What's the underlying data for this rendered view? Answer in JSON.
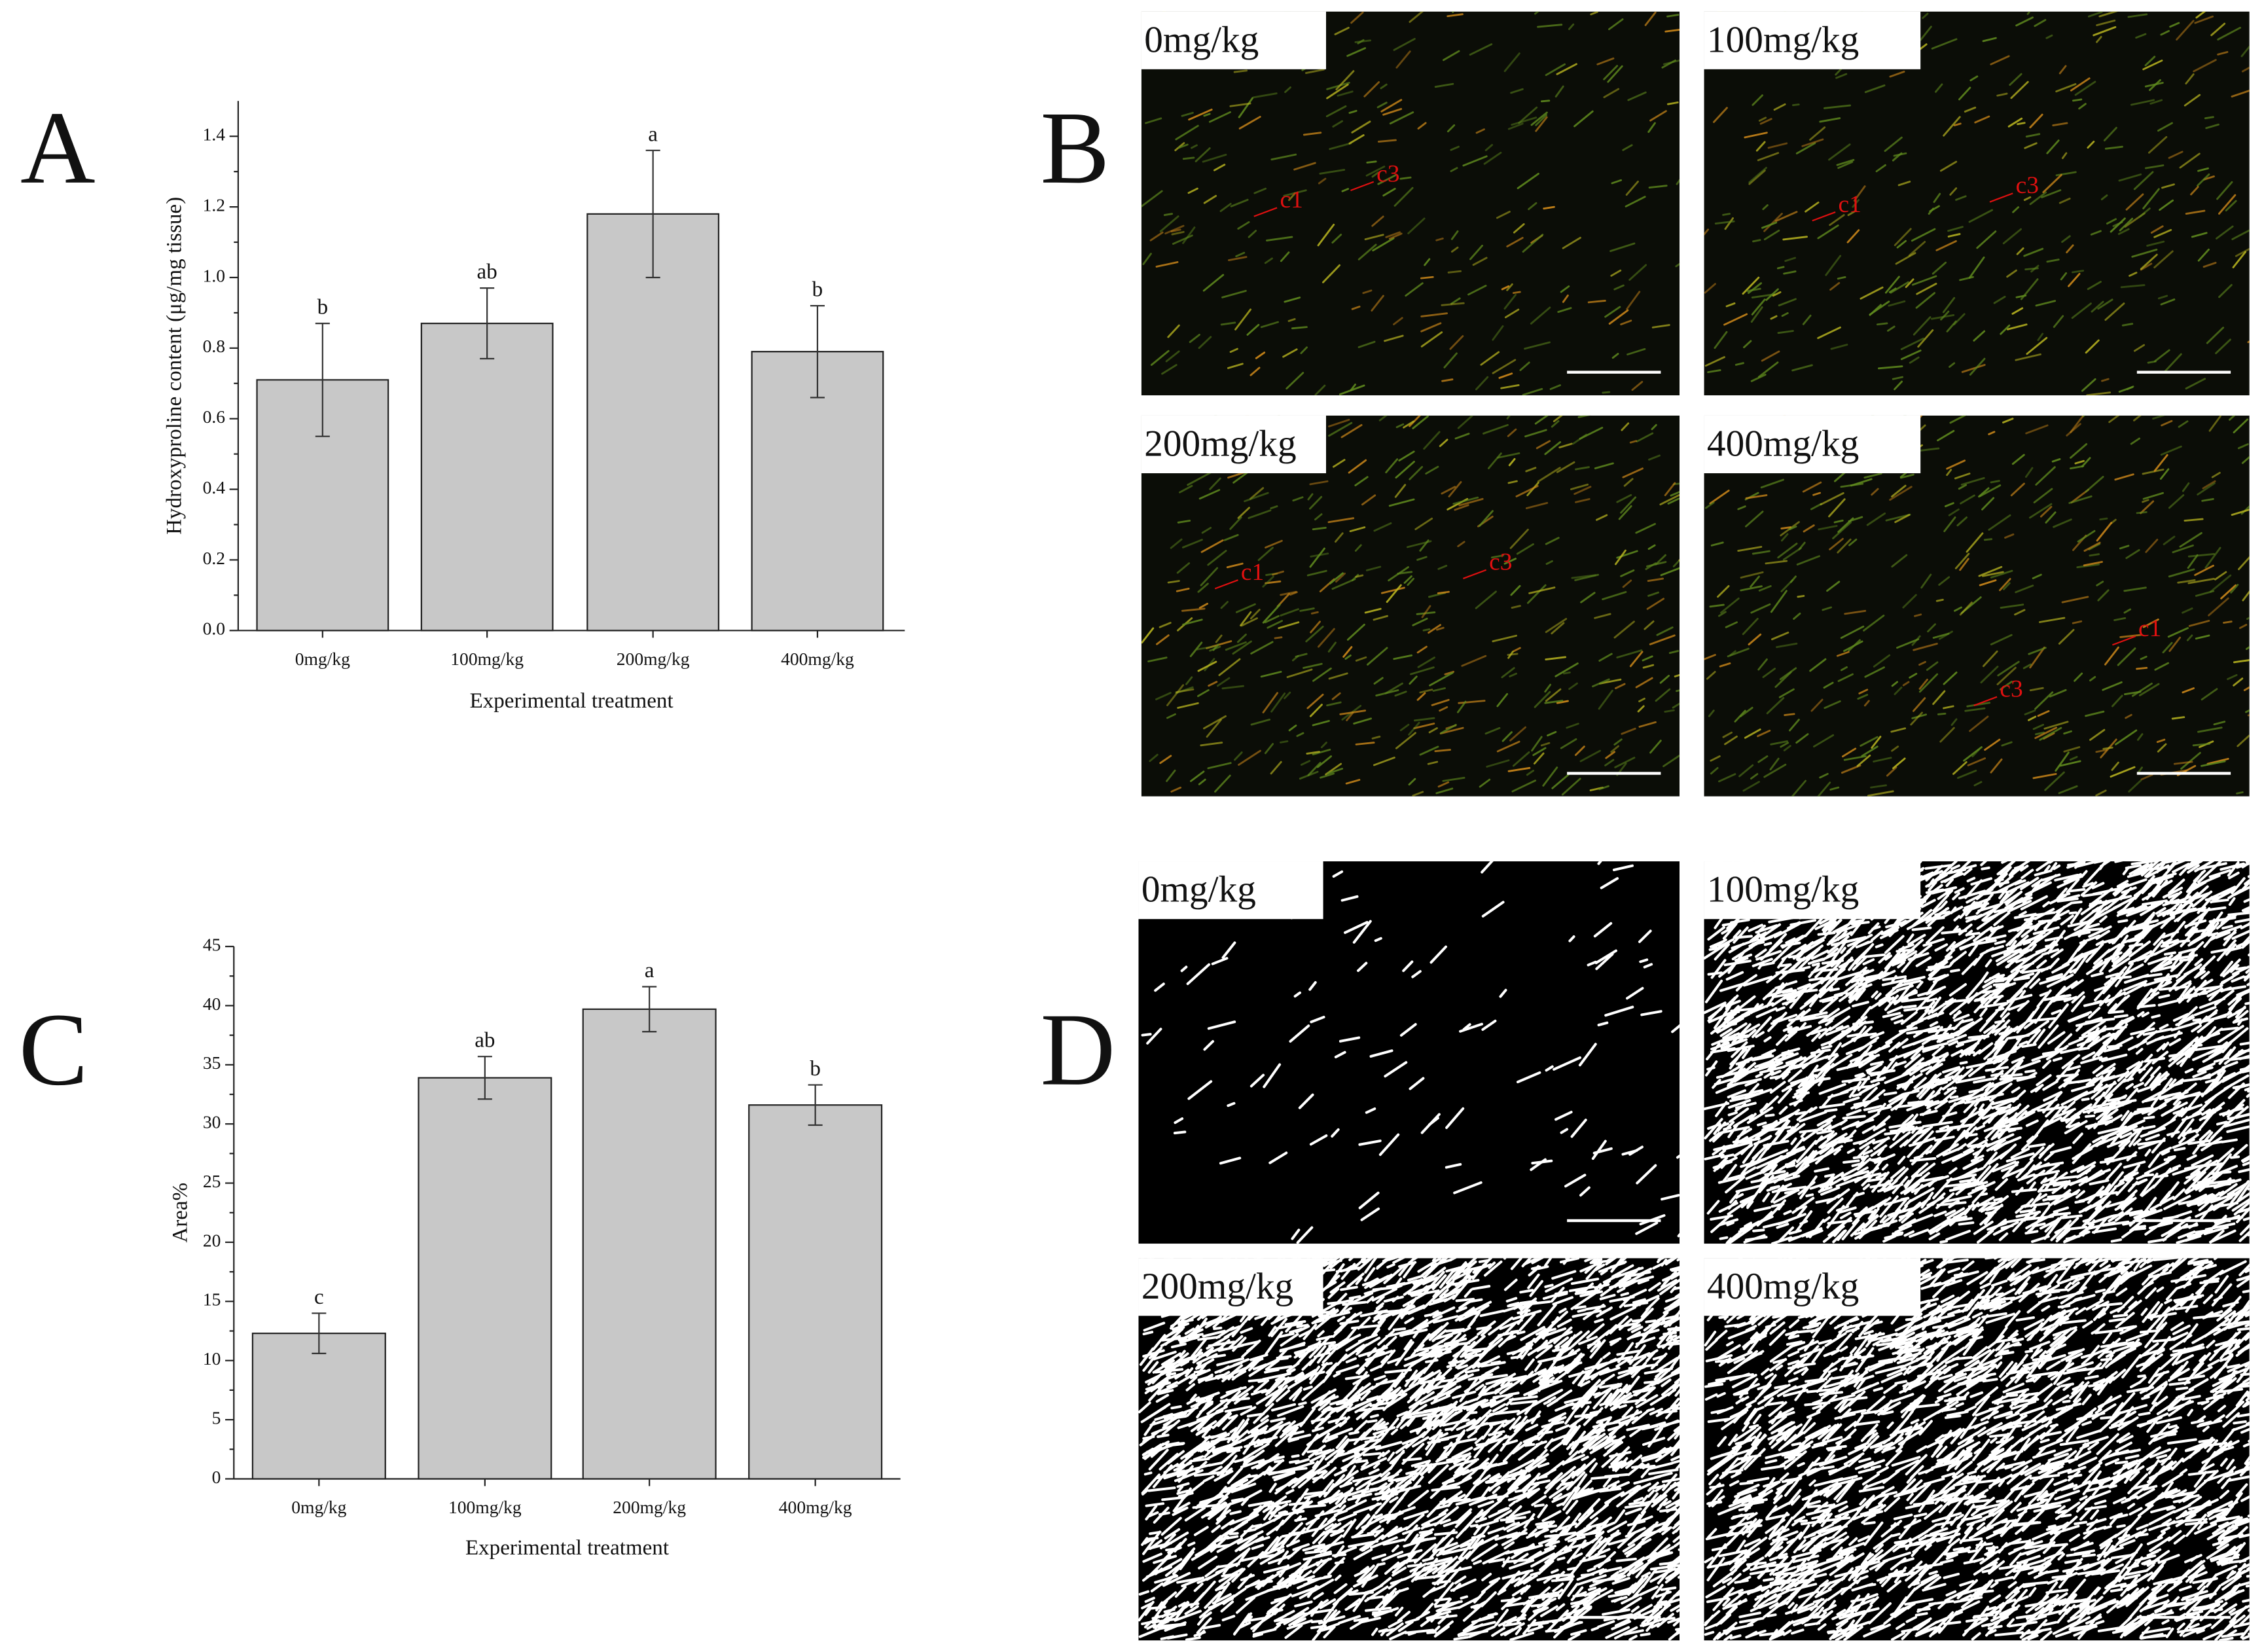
{
  "chart_data": [
    {
      "type": "bar",
      "panel": "A",
      "ylabel": "Hydroxyproline content (μg/mg tissue)",
      "xlabel": "Experimental treatment",
      "categories": [
        "0mg/kg",
        "100mg/kg",
        "200mg/kg",
        "400mg/kg"
      ],
      "values": [
        0.71,
        0.87,
        1.18,
        0.79
      ],
      "errors": [
        0.16,
        0.1,
        0.18,
        0.13
      ],
      "significance": [
        "b",
        "ab",
        "a",
        "b"
      ],
      "color": "#c8c8c8",
      "ylim": [
        0,
        1.5
      ],
      "yticks": [
        {
          "value": 0,
          "label": "0.0"
        },
        {
          "value": 0.2,
          "label": "0.2"
        },
        {
          "value": 0.4,
          "label": "0.4"
        },
        {
          "value": 0.6,
          "label": "0.6"
        },
        {
          "value": 0.8,
          "label": "0.8"
        },
        {
          "value": 1,
          "label": "1.0"
        },
        {
          "value": 1.2,
          "label": "1.2"
        },
        {
          "value": 1.4,
          "label": "1.4"
        }
      ]
    },
    {
      "type": "bar",
      "panel": "C",
      "ylabel": "Area%",
      "xlabel": "Experimental treatment",
      "categories": [
        "0mg/kg",
        "100mg/kg",
        "200mg/kg",
        "400mg/kg"
      ],
      "values": [
        12.3,
        33.9,
        39.7,
        31.6
      ],
      "errors": [
        1.7,
        1.8,
        1.9,
        1.7
      ],
      "significance": [
        "c",
        "ab",
        "a",
        "b"
      ],
      "color": "#c8c8c8",
      "ylim": [
        0,
        45
      ],
      "yticks": [
        0,
        5,
        10,
        15,
        20,
        25,
        30,
        35,
        40,
        45
      ]
    }
  ],
  "image_panels": [
    {
      "panel": "B",
      "images": [
        {
          "label": "0mg/kg",
          "annotations": [
            "c1",
            "c3"
          ]
        },
        {
          "label": "100mg/kg",
          "annotations": [
            "c1",
            "c3"
          ]
        },
        {
          "label": "200mg/kg",
          "annotations": [
            "c1",
            "c3"
          ]
        },
        {
          "label": "400mg/kg",
          "annotations": [
            "c1",
            "c3"
          ]
        }
      ]
    },
    {
      "panel": "D",
      "images": [
        {
          "label": "0mg/kg"
        },
        {
          "label": "100mg/kg"
        },
        {
          "label": "200mg/kg"
        },
        {
          "label": "400mg/kg"
        }
      ]
    }
  ]
}
